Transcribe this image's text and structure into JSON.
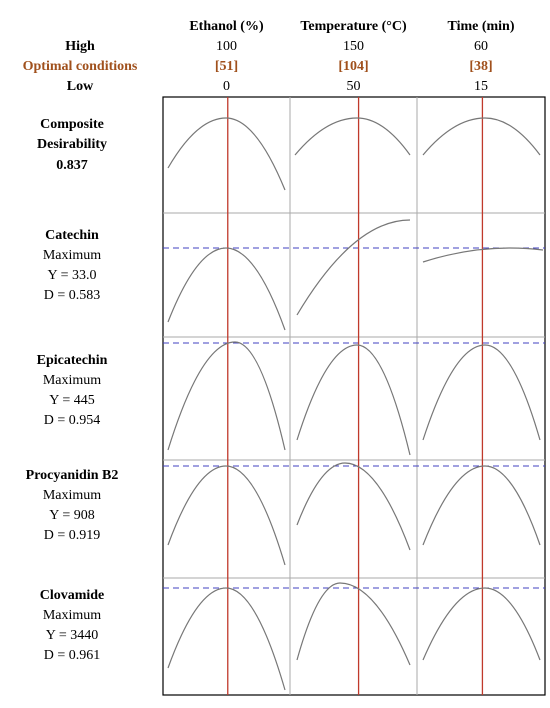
{
  "chart_data": {
    "type": "optimizer",
    "row_labels": {
      "high": "High",
      "optimal": "Optimal conditions",
      "low": "Low"
    },
    "factors": [
      {
        "name": "Ethanol (%)",
        "high": 100,
        "optimal": {
          "value": 51,
          "label": "[51]"
        },
        "low": 0
      },
      {
        "name": "Temperature (°C)",
        "high": 150,
        "optimal": {
          "value": 104,
          "label": "[104]"
        },
        "low": 50
      },
      {
        "name": "Time (min)",
        "high": 60,
        "optimal": {
          "value": 38,
          "label": "[38]"
        },
        "low": 15
      }
    ],
    "composite": {
      "name": "Composite Desirability",
      "d": 0.837
    },
    "responses": [
      {
        "name": "Catechin",
        "goal": "Maximum",
        "y": {
          "value": 33.0,
          "label": "Y = 33.0"
        },
        "d": {
          "value": 0.583,
          "label": "D = 0.583"
        }
      },
      {
        "name": "Epicatechin",
        "goal": "Maximum",
        "y": {
          "value": 445,
          "label": "Y = 445"
        },
        "d": {
          "value": 0.954,
          "label": "D = 0.954"
        }
      },
      {
        "name": "Procyanidin B2",
        "goal": "Maximum",
        "y": {
          "value": 908,
          "label": "Y = 908"
        },
        "d": {
          "value": 0.919,
          "label": "D = 0.919"
        }
      },
      {
        "name": "Clovamide",
        "goal": "Maximum",
        "y": {
          "value": 3440,
          "label": "Y = 3440"
        },
        "d": {
          "value": 0.961,
          "label": "D = 0.961"
        }
      }
    ]
  }
}
